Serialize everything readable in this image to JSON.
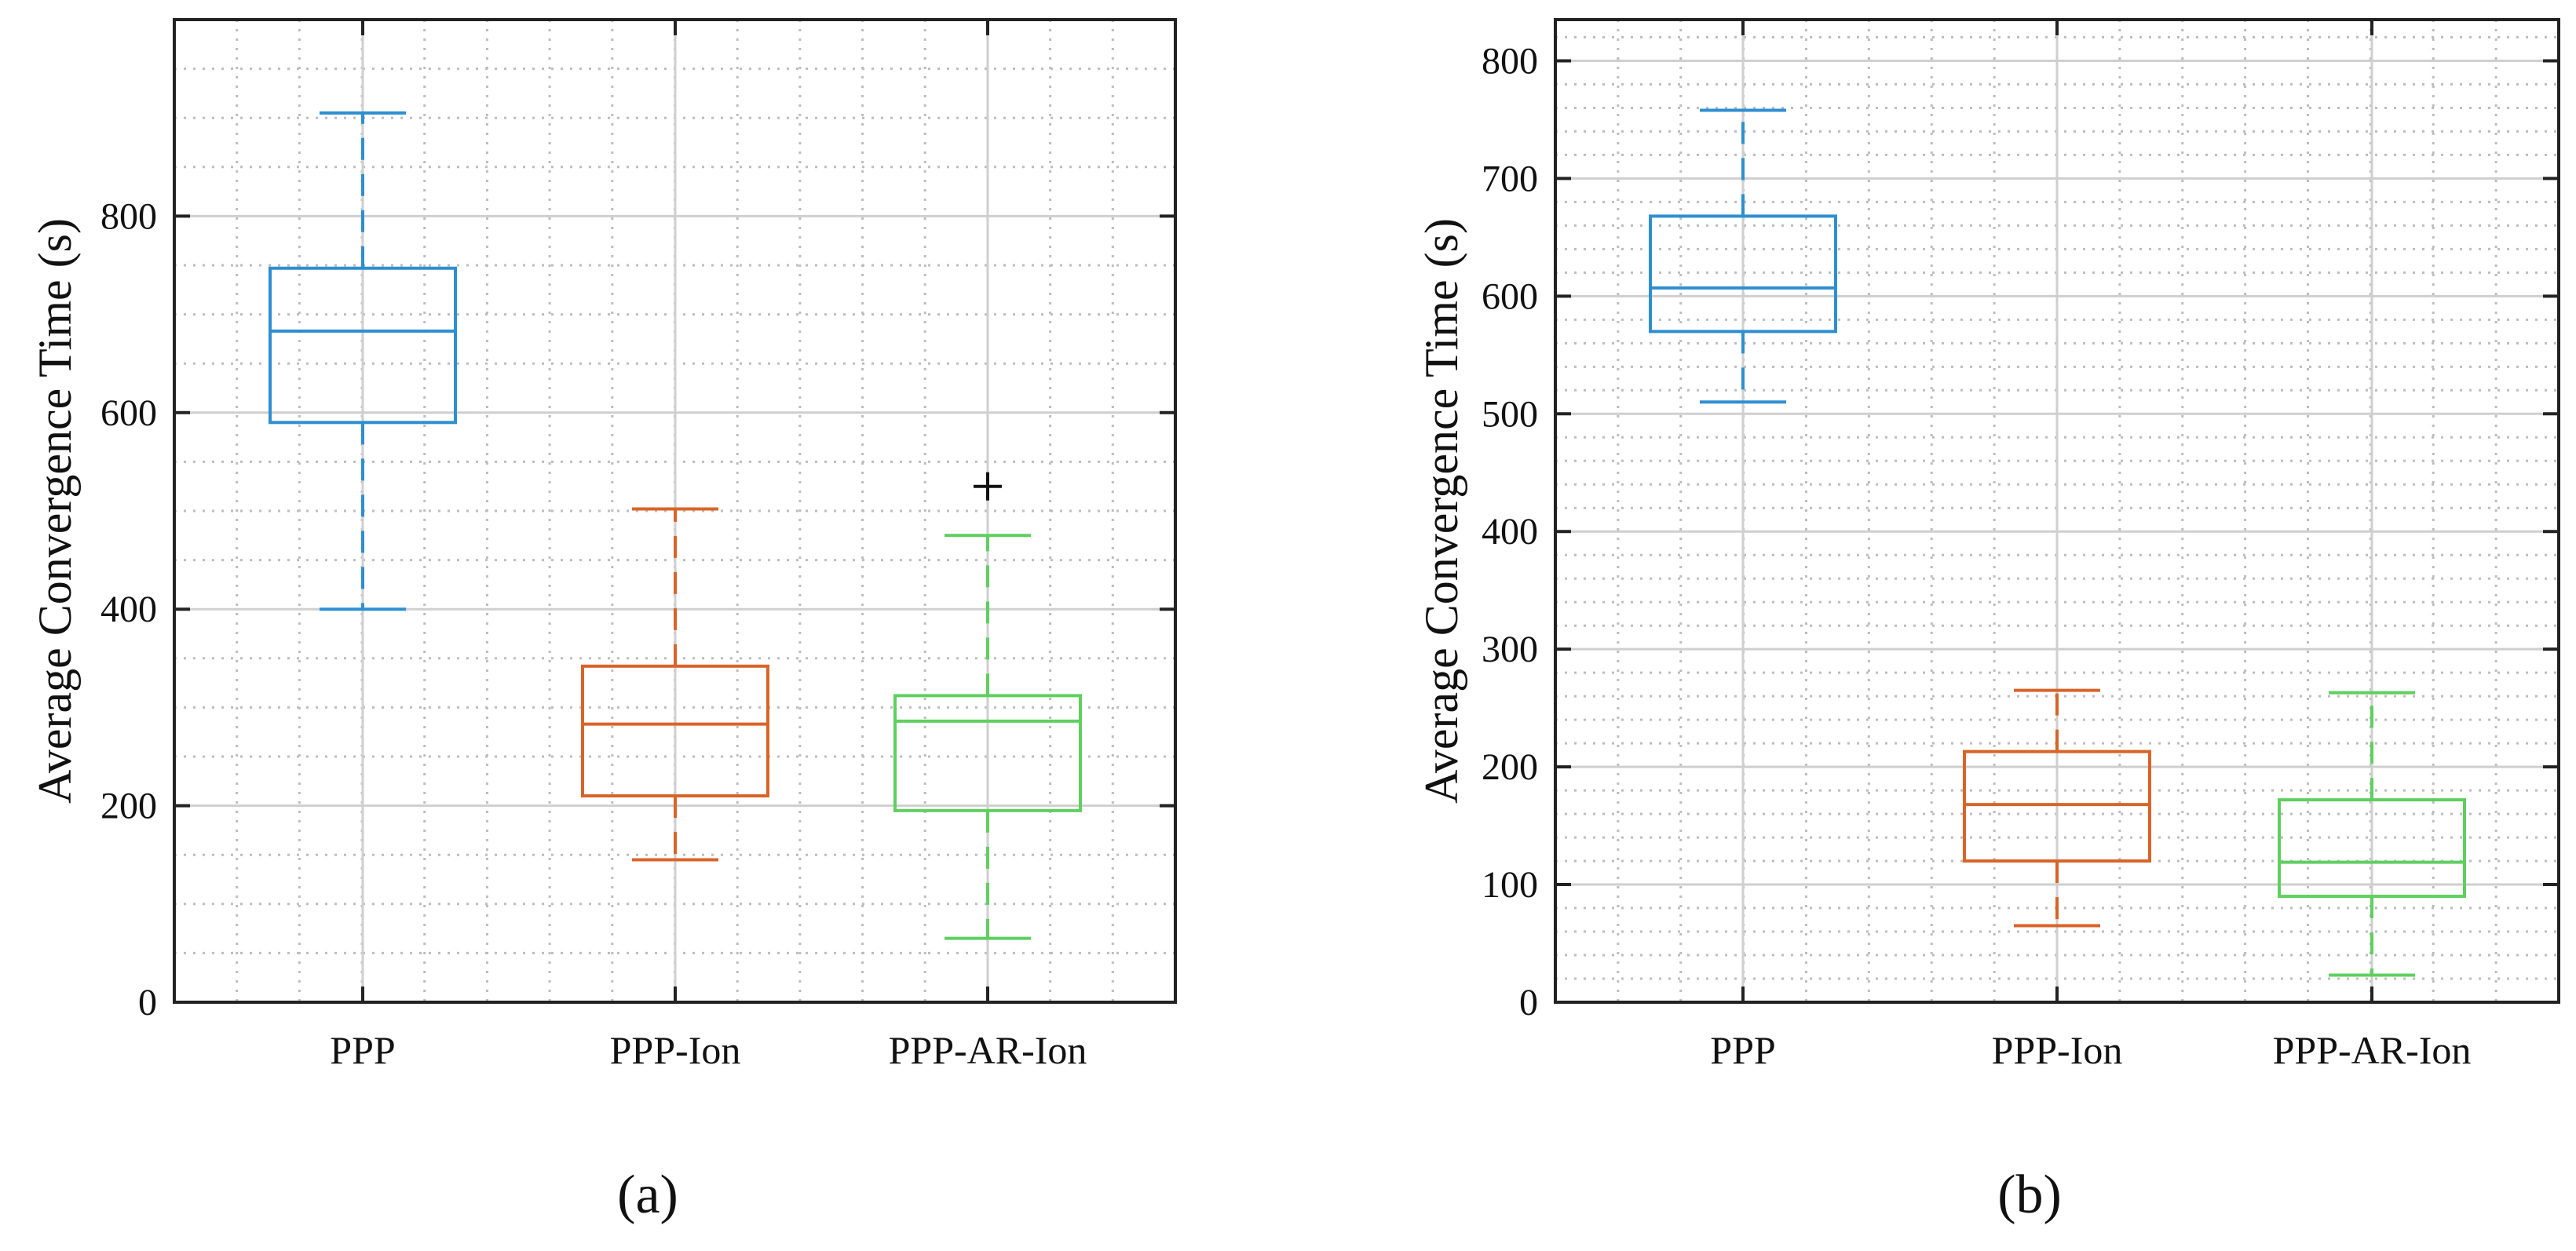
{
  "colors": {
    "PPP": "#2e8fd0",
    "PPP-Ion": "#d86428",
    "PPP-AR-Ion": "#5fcf5f",
    "outlier": "#111111",
    "axis": "#222222",
    "major_grid": "#cfcfcf",
    "minor_grid": "#bdbdbd"
  },
  "chart_data": [
    {
      "type": "box",
      "panel_label": "(a)",
      "ylabel": "Average Convergence Time (s)",
      "ylim": [
        0,
        1000
      ],
      "yticks": [
        0,
        200,
        400,
        600,
        800
      ],
      "ytick_labels": [
        "0",
        "200",
        "400",
        "600",
        "800"
      ],
      "y_minor_step": 50,
      "grid": true,
      "categories": [
        "PPP",
        "PPP-Ion",
        "PPP-AR-Ion"
      ],
      "boxes": [
        {
          "name": "PPP",
          "whisker_low": 400,
          "q1": 590,
          "median": 683,
          "q3": 747,
          "whisker_high": 905,
          "outliers": []
        },
        {
          "name": "PPP-Ion",
          "whisker_low": 145,
          "q1": 210,
          "median": 283,
          "q3": 342,
          "whisker_high": 502,
          "outliers": []
        },
        {
          "name": "PPP-AR-Ion",
          "whisker_low": 65,
          "q1": 195,
          "median": 286,
          "q3": 312,
          "whisker_high": 475,
          "outliers": [
            525
          ]
        }
      ]
    },
    {
      "type": "box",
      "panel_label": "(b)",
      "ylabel": "Average Convergence Time (s)",
      "ylim": [
        0,
        835
      ],
      "yticks": [
        0,
        100,
        200,
        300,
        400,
        500,
        600,
        700,
        800
      ],
      "ytick_labels": [
        "0",
        "100",
        "200",
        "300",
        "400",
        "500",
        "600",
        "700",
        "800"
      ],
      "y_minor_step": 20,
      "grid": true,
      "categories": [
        "PPP",
        "PPP-Ion",
        "PPP-AR-Ion"
      ],
      "boxes": [
        {
          "name": "PPP",
          "whisker_low": 510,
          "q1": 570,
          "median": 607,
          "q3": 668,
          "whisker_high": 758,
          "outliers": []
        },
        {
          "name": "PPP-Ion",
          "whisker_low": 65,
          "q1": 120,
          "median": 168,
          "q3": 213,
          "whisker_high": 265,
          "outliers": []
        },
        {
          "name": "PPP-AR-Ion",
          "whisker_low": 23,
          "q1": 90,
          "median": 119,
          "q3": 172,
          "whisker_high": 263,
          "outliers": []
        }
      ]
    }
  ]
}
